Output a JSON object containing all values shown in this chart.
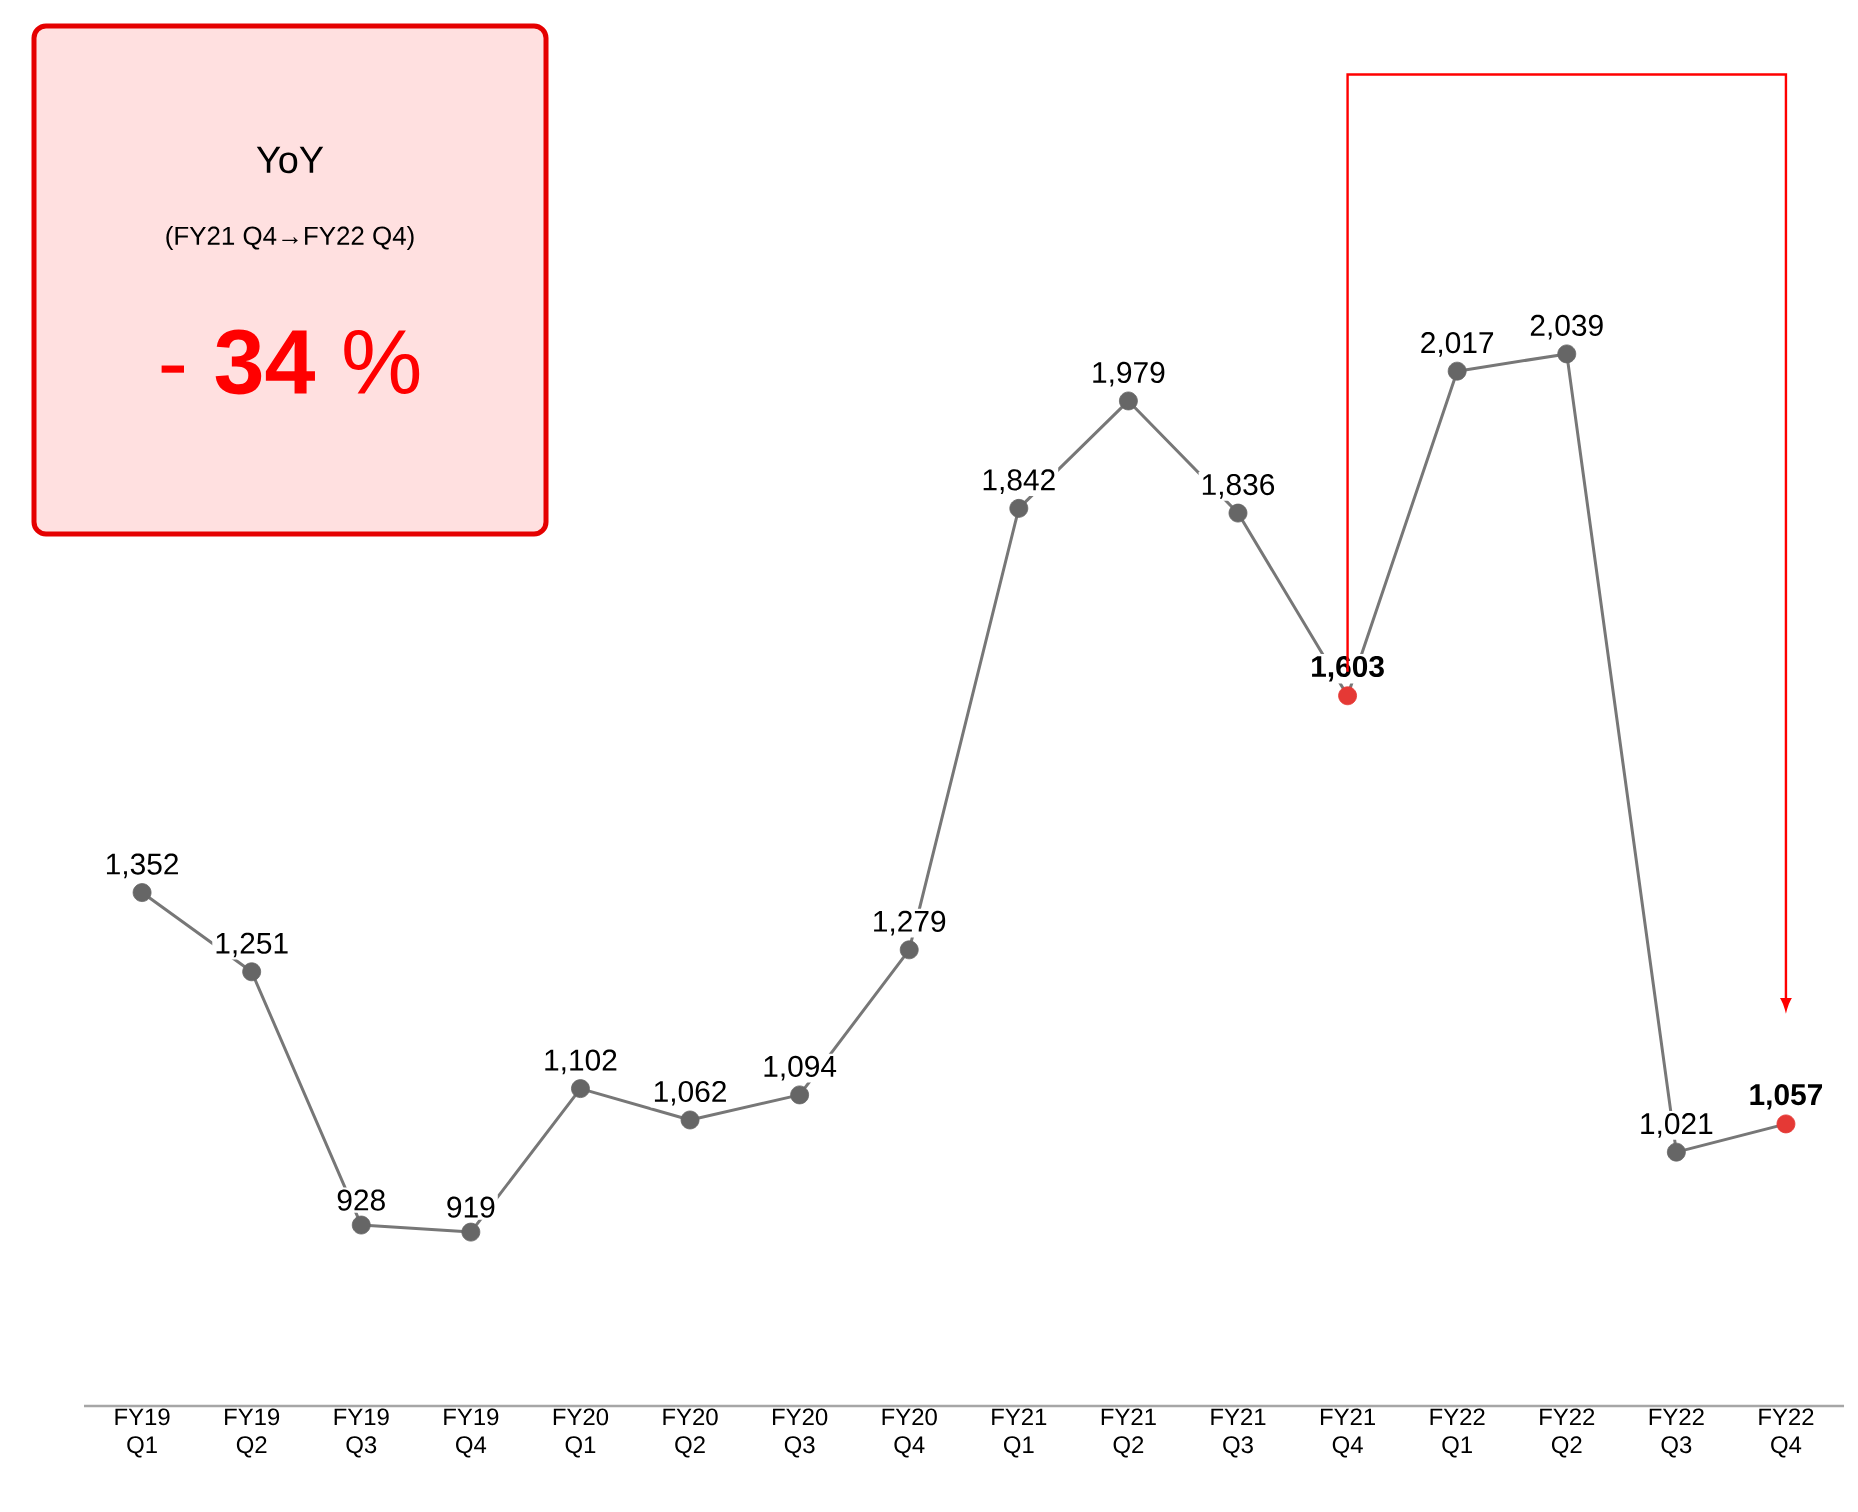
{
  "chart_data": {
    "type": "line",
    "categories": [
      "FY19 Q1",
      "FY19 Q2",
      "FY19 Q3",
      "FY19 Q4",
      "FY20 Q1",
      "FY20 Q2",
      "FY20 Q3",
      "FY20 Q4",
      "FY21 Q1",
      "FY21 Q2",
      "FY21 Q3",
      "FY21 Q4",
      "FY22 Q1",
      "FY22 Q2",
      "FY22 Q3",
      "FY22 Q4"
    ],
    "series": [
      {
        "color": "#777777",
        "colors": [
          "#666666",
          "#666666",
          "#666666",
          "#666666",
          "#666666",
          "#666666",
          "#666666",
          "#666666",
          "#666666",
          "#666666",
          "#666666",
          "#e53935",
          "#666666",
          "#666666",
          "#666666",
          "#e53935"
        ],
        "values": [
          1352,
          1251,
          928,
          919,
          1102,
          1062,
          1094,
          1279,
          1842,
          1979,
          1836,
          1603,
          2017,
          2039,
          1021,
          1057
        ],
        "value_labels": [
          "1,352",
          "1,251",
          "928",
          "919",
          "1,102",
          "1,062",
          "1,094",
          "1,279",
          "1,842",
          "1,979",
          "1,836",
          "**1,603**",
          "2,017",
          "2,039",
          "1,021",
          "**1,057**"
        ]
      }
    ],
    "tick_labels": "x",
    "marker": "circle",
    "annotations": [
      "YoY",
      "(FY21 Q4→FY22 Q4)",
      "- **34** %"
    ]
  }
}
